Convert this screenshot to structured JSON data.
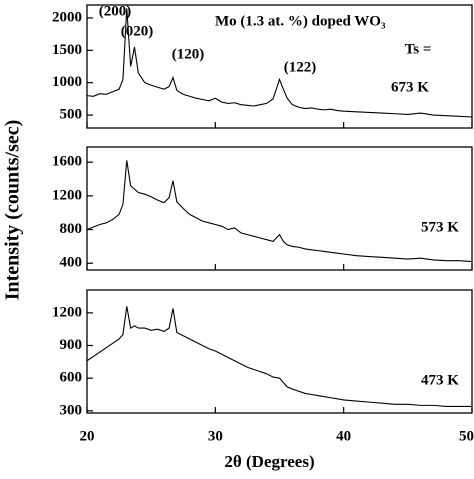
{
  "ylabel": "Intensity (counts/sec)",
  "chart_data": [
    {
      "type": "line",
      "color": "#000000",
      "title": "Mo (1.3 at. %) doped WO₃",
      "annotations": [
        "(200)",
        "(020)",
        "(120)",
        "(122)",
        "Ts =",
        "673 K"
      ],
      "x": [
        20,
        20.5,
        21,
        21.5,
        22,
        22.5,
        22.8,
        23.1,
        23.4,
        23.7,
        24,
        24.5,
        25,
        25.5,
        26,
        26.4,
        26.7,
        27,
        27.5,
        28,
        28.5,
        29,
        29.5,
        30,
        30.5,
        31,
        31.5,
        32,
        32.5,
        33,
        33.5,
        34,
        34.5,
        35,
        35.3,
        35.6,
        36,
        36.5,
        37,
        37.5,
        38,
        38.5,
        39,
        39.5,
        40,
        41,
        42,
        43,
        44,
        45,
        46,
        47,
        48,
        49,
        50
      ],
      "values": [
        800,
        790,
        830,
        820,
        860,
        900,
        1050,
        2150,
        1250,
        1550,
        1150,
        1000,
        960,
        930,
        900,
        940,
        1080,
        880,
        820,
        790,
        760,
        740,
        720,
        760,
        700,
        680,
        690,
        660,
        650,
        640,
        660,
        680,
        750,
        1050,
        900,
        760,
        660,
        620,
        600,
        610,
        590,
        580,
        590,
        570,
        560,
        550,
        540,
        530,
        520,
        510,
        530,
        500,
        490,
        480,
        470
      ],
      "xlim": [
        20,
        50
      ],
      "xticks": [
        20,
        30,
        40,
        50
      ],
      "ylim": [
        300,
        2200
      ],
      "yticks": [
        500,
        1000,
        1500,
        2000
      ]
    },
    {
      "type": "line",
      "color": "#000000",
      "annotations": [
        "573 K"
      ],
      "x": [
        20,
        20.5,
        21,
        21.5,
        22,
        22.5,
        22.8,
        23.1,
        23.4,
        23.7,
        24,
        24.5,
        25,
        25.5,
        26,
        26.4,
        26.7,
        27,
        27.5,
        28,
        28.5,
        29,
        29.5,
        30,
        30.5,
        31,
        31.5,
        32,
        32.5,
        33,
        33.5,
        34,
        34.5,
        35,
        35.3,
        35.6,
        36,
        36.5,
        37,
        37.5,
        38,
        38.5,
        39,
        39.5,
        40,
        41,
        42,
        43,
        44,
        45,
        46,
        47,
        48,
        49,
        50
      ],
      "values": [
        800,
        830,
        860,
        880,
        920,
        980,
        1100,
        1620,
        1320,
        1280,
        1240,
        1220,
        1190,
        1150,
        1120,
        1180,
        1380,
        1130,
        1050,
        980,
        940,
        900,
        880,
        860,
        840,
        800,
        820,
        760,
        740,
        720,
        700,
        680,
        660,
        740,
        660,
        620,
        600,
        590,
        570,
        560,
        550,
        540,
        530,
        520,
        510,
        490,
        480,
        470,
        460,
        450,
        460,
        440,
        430,
        430,
        420
      ],
      "xlim": [
        20,
        50
      ],
      "xticks": [
        20,
        30,
        40,
        50
      ],
      "ylim": [
        320,
        1780
      ],
      "yticks": [
        400,
        800,
        1200,
        1600
      ]
    },
    {
      "type": "line",
      "color": "#000000",
      "annotations": [
        "473 K"
      ],
      "xlabel": "2θ (Degrees)",
      "x": [
        20,
        20.5,
        21,
        21.5,
        22,
        22.5,
        22.8,
        23.1,
        23.4,
        23.7,
        24,
        24.5,
        25,
        25.5,
        26,
        26.4,
        26.7,
        27,
        27.5,
        28,
        28.5,
        29,
        29.5,
        30,
        30.5,
        31,
        31.5,
        32,
        32.5,
        33,
        33.5,
        34,
        34.5,
        35,
        35.3,
        35.6,
        36,
        36.5,
        37,
        37.5,
        38,
        38.5,
        39,
        39.5,
        40,
        41,
        42,
        43,
        44,
        45,
        46,
        47,
        48,
        49,
        50
      ],
      "values": [
        760,
        800,
        840,
        880,
        920,
        960,
        1000,
        1260,
        1060,
        1080,
        1060,
        1060,
        1040,
        1050,
        1030,
        1060,
        1240,
        1020,
        990,
        960,
        930,
        900,
        870,
        850,
        820,
        790,
        760,
        730,
        700,
        680,
        660,
        640,
        610,
        600,
        560,
        520,
        500,
        480,
        460,
        450,
        440,
        430,
        420,
        410,
        400,
        390,
        380,
        370,
        360,
        360,
        350,
        350,
        340,
        340,
        340
      ],
      "xlim": [
        20,
        50
      ],
      "xticks": [
        20,
        30,
        40,
        50
      ],
      "ylim": [
        280,
        1410
      ],
      "yticks": [
        300,
        600,
        900,
        1200
      ]
    }
  ]
}
